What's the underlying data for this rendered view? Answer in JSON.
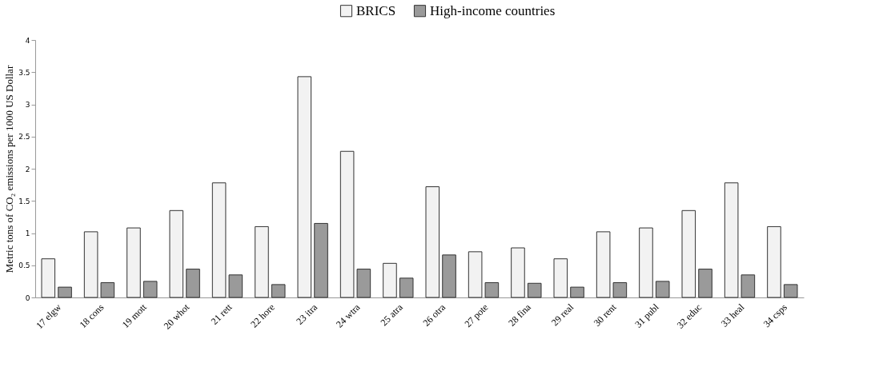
{
  "chart_data": {
    "type": "bar",
    "ylabel": "Metric tons of CO₂ emissions per 1000 US Dollar",
    "categories": [
      "17 elgw",
      "18 cons",
      "19 mott",
      "20 whot",
      "21 rett",
      "22 hore",
      "23 itra",
      "24 wtra",
      "25 atra",
      "26 otra",
      "27 pote",
      "28 fina",
      "29 real",
      "30 rent",
      "31 publ",
      "32 educ",
      "33 heal",
      "34 csps"
    ],
    "series": [
      {
        "name": "BRICS",
        "color": "#f2f2f2",
        "values": [
          0.6,
          1.02,
          1.08,
          1.35,
          1.78,
          1.1,
          3.43,
          2.27,
          0.53,
          1.72,
          0.71,
          0.77,
          0.6,
          1.02,
          1.08,
          1.35,
          1.78,
          1.1
        ]
      },
      {
        "name": "High-income countries",
        "color": "#9a9a9a",
        "values": [
          0.16,
          0.23,
          0.25,
          0.44,
          0.35,
          0.2,
          1.15,
          0.44,
          0.3,
          0.66,
          0.23,
          0.22,
          0.16,
          0.23,
          0.25,
          0.44,
          0.35,
          0.2
        ]
      }
    ],
    "ylim": [
      0,
      4
    ],
    "yticks": [
      0,
      0.5,
      1,
      1.5,
      2,
      2.5,
      3,
      3.5,
      4
    ],
    "grid": false,
    "legend": "top"
  }
}
